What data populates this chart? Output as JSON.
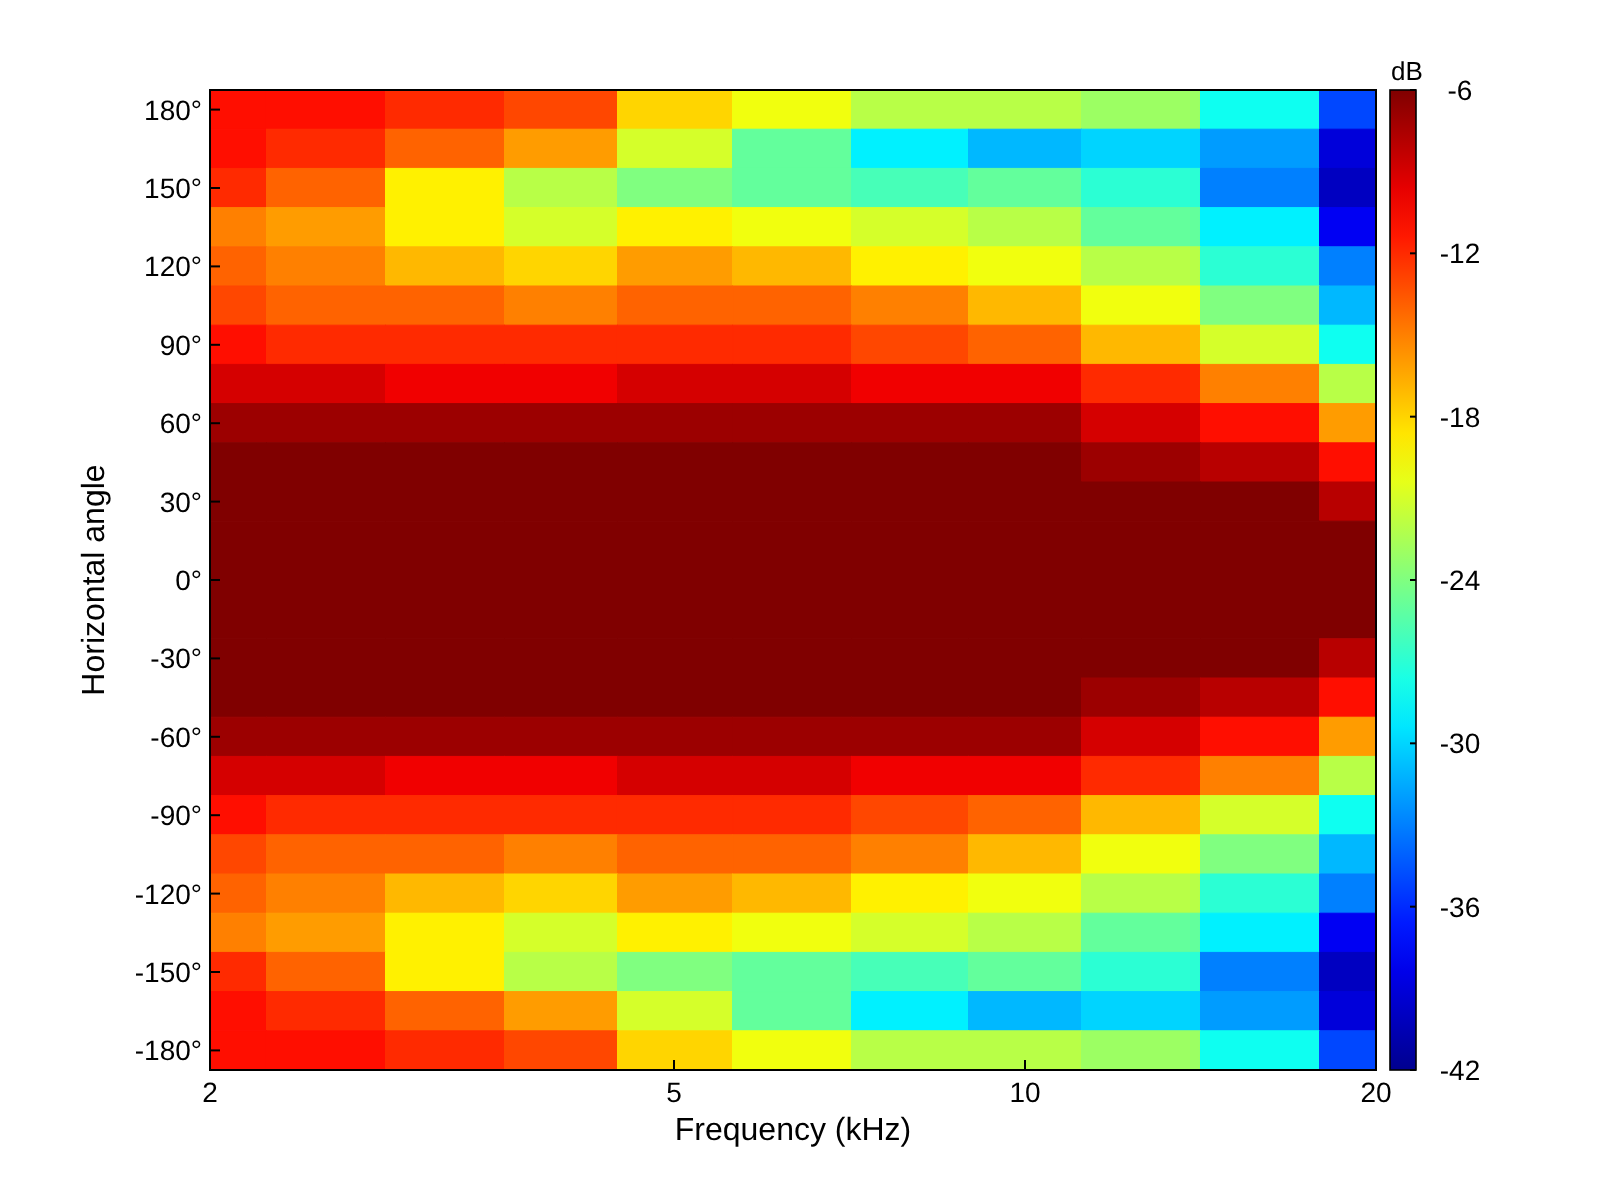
{
  "chart_data": {
    "type": "heatmap",
    "xlabel": "Frequency (kHz)",
    "ylabel": "Horizontal angle",
    "clabel": "dB",
    "log": "x",
    "x": [
      2,
      2.5,
      3.2,
      4,
      5,
      6.3,
      8,
      10,
      12.5,
      16,
      20
    ],
    "xlim": [
      2,
      20
    ],
    "xticks": [
      2,
      5,
      10,
      20
    ],
    "y_categories": [
      "180°",
      null,
      "150°",
      null,
      "120°",
      null,
      "90°",
      null,
      "60°",
      null,
      "30°",
      null,
      "0°",
      null,
      "-30°",
      null,
      "-60°",
      null,
      "-90°",
      null,
      "-120°",
      null,
      "-150°",
      null,
      "-180°"
    ],
    "clim": [
      -42,
      -6
    ],
    "cticks": [
      -42,
      -36,
      -30,
      -24,
      -18,
      -12,
      -6
    ],
    "cells": [
      [
        -11,
        -11,
        -12,
        -13,
        -18,
        -20,
        -22,
        -22,
        -23,
        -28,
        -35
      ],
      [
        -11,
        -12,
        -14,
        -16,
        -21,
        -25,
        -29,
        -31,
        -30,
        -32,
        -39
      ],
      [
        -12,
        -14,
        -19,
        -22,
        -24,
        -25,
        -26,
        -25,
        -27,
        -33,
        -40
      ],
      [
        -15,
        -16,
        -19,
        -21,
        -19,
        -20,
        -21,
        -22,
        -25,
        -29,
        -38
      ],
      [
        -14,
        -15,
        -17,
        -18,
        -16,
        -17,
        -19,
        -20,
        -22,
        -27,
        -33
      ],
      [
        -13,
        -14,
        -14,
        -15,
        -14,
        -14,
        -15,
        -17,
        -20,
        -24,
        -31
      ],
      [
        -11,
        -12,
        -12,
        -12,
        -12,
        -12,
        -13,
        -14,
        -17,
        -21,
        -28
      ],
      [
        -9,
        -9,
        -10,
        -10,
        -9,
        -9,
        -10,
        -10,
        -12,
        -15,
        -22
      ],
      [
        -7,
        -7,
        -7,
        -7,
        -7,
        -7,
        -7,
        -7,
        -9,
        -11,
        -16
      ],
      [
        -6,
        -6,
        -6,
        -6,
        -6,
        -6,
        -6,
        -6,
        -7,
        -8,
        -11
      ],
      [
        -6,
        -6,
        -6,
        -6,
        -6,
        -6,
        -6,
        -6,
        -6,
        -6,
        -8
      ],
      [
        -6,
        -6,
        -6,
        -6,
        -6,
        -6,
        -6,
        -6,
        -6,
        -6,
        -6
      ],
      [
        -6,
        -6,
        -6,
        -6,
        -6,
        -6,
        -6,
        -6,
        -6,
        -6,
        -6
      ],
      [
        -6,
        -6,
        -6,
        -6,
        -6,
        -6,
        -6,
        -6,
        -6,
        -6,
        -6
      ],
      [
        -6,
        -6,
        -6,
        -6,
        -6,
        -6,
        -6,
        -6,
        -6,
        -6,
        -8
      ],
      [
        -6,
        -6,
        -6,
        -6,
        -6,
        -6,
        -6,
        -6,
        -7,
        -8,
        -11
      ],
      [
        -7,
        -7,
        -7,
        -7,
        -7,
        -7,
        -7,
        -7,
        -9,
        -11,
        -16
      ],
      [
        -9,
        -9,
        -10,
        -10,
        -9,
        -9,
        -10,
        -10,
        -12,
        -15,
        -22
      ],
      [
        -11,
        -12,
        -12,
        -12,
        -12,
        -12,
        -13,
        -14,
        -17,
        -21,
        -28
      ],
      [
        -13,
        -14,
        -14,
        -15,
        -14,
        -14,
        -15,
        -17,
        -20,
        -24,
        -31
      ],
      [
        -14,
        -15,
        -17,
        -18,
        -16,
        -17,
        -19,
        -20,
        -22,
        -27,
        -33
      ],
      [
        -15,
        -16,
        -19,
        -21,
        -19,
        -20,
        -21,
        -22,
        -25,
        -29,
        -38
      ],
      [
        -12,
        -14,
        -19,
        -22,
        -24,
        -25,
        -26,
        -25,
        -27,
        -33,
        -40
      ],
      [
        -11,
        -12,
        -14,
        -16,
        -21,
        -25,
        -29,
        -31,
        -30,
        -32,
        -39
      ],
      [
        -11,
        -11,
        -12,
        -13,
        -18,
        -20,
        -22,
        -22,
        -23,
        -28,
        -35
      ]
    ]
  }
}
